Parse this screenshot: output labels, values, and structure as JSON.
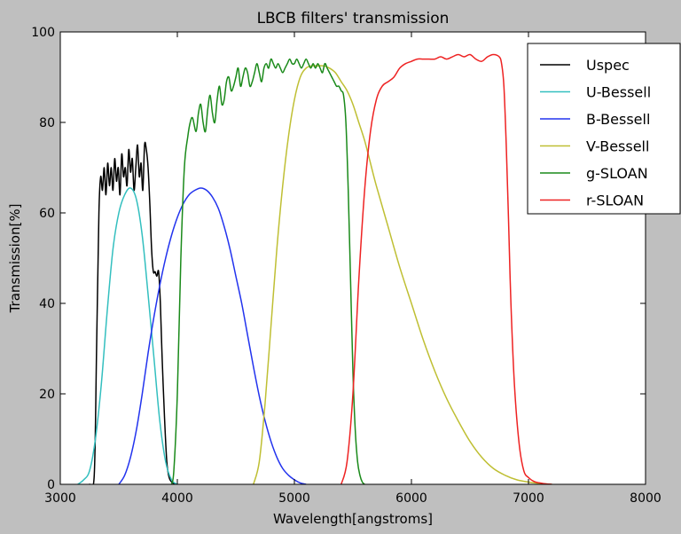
{
  "chart_data": {
    "type": "line",
    "title": "LBCB filters' transmission",
    "xlabel": "Wavelength[angstroms]",
    "ylabel": "Transmission[%]",
    "xlim": [
      3000,
      8000
    ],
    "ylim": [
      0,
      100
    ],
    "xticks": [
      3000,
      4000,
      5000,
      6000,
      7000,
      8000
    ],
    "yticks": [
      0,
      20,
      40,
      60,
      80,
      100
    ],
    "grid": false,
    "legend": "top-right",
    "series": [
      {
        "name": "Uspec",
        "color": "#000000",
        "x": [
          3250,
          3290,
          3310,
          3330,
          3345,
          3360,
          3375,
          3390,
          3405,
          3420,
          3435,
          3450,
          3465,
          3480,
          3495,
          3510,
          3525,
          3540,
          3555,
          3570,
          3585,
          3600,
          3615,
          3630,
          3645,
          3660,
          3675,
          3690,
          3705,
          3720,
          3735,
          3750,
          3765,
          3780,
          3795,
          3810,
          3825,
          3840,
          3855,
          3870,
          3890,
          3910,
          3930,
          3960,
          4000
        ],
        "y": [
          0,
          2,
          30,
          60,
          68,
          65,
          70,
          64,
          71,
          66,
          70,
          65,
          72,
          67,
          70,
          64,
          73,
          68,
          70,
          66,
          74,
          69,
          72,
          65,
          70,
          75,
          68,
          71,
          65,
          75,
          74,
          70,
          62,
          52,
          47,
          47,
          46,
          47,
          40,
          28,
          15,
          5,
          1.5,
          0.3,
          0
        ]
      },
      {
        "name": "U-Bessell",
        "color": "#33bfbf",
        "x": [
          3150,
          3200,
          3250,
          3300,
          3350,
          3400,
          3450,
          3500,
          3550,
          3600,
          3650,
          3700,
          3750,
          3800,
          3850,
          3900,
          3950,
          4000
        ],
        "y": [
          0,
          1,
          3,
          10,
          22,
          38,
          52,
          60,
          64,
          65.5,
          63,
          55,
          42,
          28,
          14,
          5,
          1,
          0
        ]
      },
      {
        "name": "B-Bessell",
        "color": "#2233ee",
        "x": [
          3500,
          3550,
          3600,
          3650,
          3700,
          3750,
          3800,
          3850,
          3900,
          3950,
          4000,
          4050,
          4100,
          4150,
          4200,
          4250,
          4300,
          4350,
          4400,
          4450,
          4500,
          4550,
          4600,
          4650,
          4700,
          4750,
          4800,
          4850,
          4900,
          4950,
          5000,
          5050,
          5100
        ],
        "y": [
          0,
          2,
          6,
          12,
          20,
          29,
          37,
          44,
          50,
          55,
          59,
          62,
          64,
          65,
          65.5,
          65,
          63.5,
          61,
          57,
          52,
          46,
          40,
          33,
          26,
          19.5,
          14,
          9.5,
          6,
          3.5,
          2,
          1,
          0.3,
          0
        ]
      },
      {
        "name": "V-Bessell",
        "color": "#bfbf33",
        "x": [
          4650,
          4700,
          4750,
          4800,
          4850,
          4900,
          4950,
          5000,
          5050,
          5100,
          5150,
          5200,
          5250,
          5300,
          5350,
          5400,
          5450,
          5500,
          5550,
          5600,
          5650,
          5700,
          5800,
          5900,
          6000,
          6100,
          6200,
          6300,
          6400,
          6500,
          6600,
          6700,
          6800,
          6900,
          7000,
          7100,
          7200
        ],
        "y": [
          0,
          5,
          18,
          35,
          52,
          66,
          77,
          85,
          90,
          92,
          92.5,
          92.5,
          92.5,
          92,
          91,
          89,
          87,
          84,
          80,
          76,
          71,
          66,
          57,
          48,
          40,
          32,
          25,
          19,
          14,
          9.5,
          6,
          3.5,
          2,
          1,
          0.5,
          0.2,
          0
        ]
      },
      {
        "name": "g-SLOAN",
        "color": "#1a8a1a",
        "x": [
          3950,
          3970,
          4000,
          4030,
          4060,
          4090,
          4110,
          4130,
          4160,
          4180,
          4200,
          4220,
          4240,
          4260,
          4280,
          4300,
          4320,
          4340,
          4360,
          4380,
          4400,
          4420,
          4440,
          4460,
          4480,
          4500,
          4520,
          4540,
          4560,
          4580,
          4600,
          4620,
          4640,
          4660,
          4680,
          4700,
          4720,
          4740,
          4760,
          4780,
          4800,
          4820,
          4840,
          4860,
          4880,
          4900,
          4920,
          4940,
          4960,
          4980,
          5000,
          5020,
          5040,
          5060,
          5080,
          5100,
          5120,
          5140,
          5160,
          5180,
          5200,
          5220,
          5240,
          5260,
          5280,
          5300,
          5320,
          5340,
          5360,
          5380,
          5400,
          5420,
          5440,
          5460,
          5480,
          5500,
          5520,
          5540,
          5560,
          5580,
          5600
        ],
        "y": [
          0,
          3,
          20,
          50,
          70,
          77,
          80,
          81,
          78,
          82,
          84,
          80,
          78,
          83,
          86,
          82,
          80,
          85,
          88,
          84,
          85,
          89,
          90,
          87,
          88,
          90,
          92,
          88,
          90,
          92,
          91,
          88,
          89,
          91,
          93,
          91,
          89,
          92,
          93,
          92,
          94,
          93,
          92,
          93,
          92,
          91,
          92,
          93,
          94,
          93,
          93,
          94,
          93,
          92,
          93,
          94,
          93,
          92,
          93,
          92,
          93,
          92,
          91,
          93,
          92,
          91,
          90,
          89,
          88,
          88,
          87,
          86,
          80,
          65,
          45,
          25,
          12,
          5,
          2,
          0.5,
          0
        ]
      },
      {
        "name": "r-SLOAN",
        "color": "#ee2222",
        "x": [
          5400,
          5450,
          5500,
          5550,
          5600,
          5650,
          5700,
          5750,
          5800,
          5850,
          5900,
          5950,
          6000,
          6050,
          6100,
          6150,
          6200,
          6250,
          6300,
          6350,
          6400,
          6450,
          6500,
          6550,
          6600,
          6650,
          6700,
          6750,
          6770,
          6790,
          6810,
          6830,
          6850,
          6880,
          6920,
          6960,
          7000,
          7050,
          7100,
          7150,
          7200
        ],
        "y": [
          0,
          5,
          20,
          45,
          65,
          78,
          85,
          88,
          89,
          90,
          92,
          93,
          93.5,
          94,
          94,
          94,
          94,
          94.5,
          94,
          94.5,
          95,
          94.5,
          95,
          94,
          93.5,
          94.5,
          95,
          94.5,
          93,
          88,
          75,
          58,
          40,
          22,
          9,
          3,
          1.5,
          0.6,
          0.3,
          0.1,
          0
        ]
      }
    ]
  }
}
